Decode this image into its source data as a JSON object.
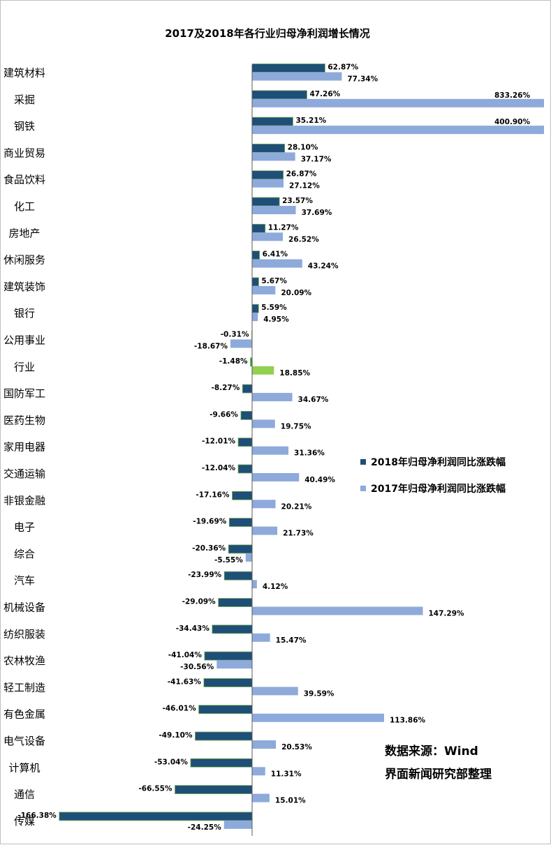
{
  "chart_data": {
    "type": "bar",
    "orientation": "horizontal",
    "title": "2017及2018年各行业归母净利润增长情况",
    "categories": [
      "建筑材料",
      "采掘",
      "钢铁",
      "商业贸易",
      "食品饮料",
      "化工",
      "房地产",
      "休闲服务",
      "建筑装饰",
      "银行",
      "公用事业",
      "行业",
      "国防军工",
      "医药生物",
      "家用电器",
      "交通运输",
      "非银金融",
      "电子",
      "综合",
      "汽车",
      "机械设备",
      "纺织服装",
      "农林牧渔",
      "轻工制造",
      "有色金属",
      "电气设备",
      "计算机",
      "通信",
      "传媒"
    ],
    "series": [
      {
        "name": "2018年归母净利润同比涨跌幅",
        "color": "#1f4e79",
        "values": [
          62.87,
          47.26,
          35.21,
          28.1,
          26.87,
          23.57,
          11.27,
          6.41,
          5.67,
          5.59,
          -0.31,
          -1.48,
          -8.27,
          -9.66,
          -12.01,
          -12.04,
          -17.16,
          -19.69,
          -20.36,
          -23.99,
          -29.09,
          -34.43,
          -41.04,
          -41.63,
          -46.01,
          -49.1,
          -53.04,
          -66.55,
          -166.38
        ],
        "labels": [
          "62.87%",
          "47.26%",
          "35.21%",
          "28.10%",
          "26.87%",
          "23.57%",
          "11.27%",
          "6.41%",
          "5.67%",
          "5.59%",
          "-0.31%",
          "-1.48%",
          "-8.27%",
          "-9.66%",
          "-12.01%",
          "-12.04%",
          "-17.16%",
          "-19.69%",
          "-20.36%",
          "-23.99%",
          "-29.09%",
          "-34.43%",
          "-41.04%",
          "-41.63%",
          "-46.01%",
          "-49.10%",
          "-53.04%",
          "-66.55%",
          "-166.38%"
        ]
      },
      {
        "name": "2017年归母净利润同比涨跌幅",
        "color": "#8eaadb",
        "values": [
          77.34,
          833.26,
          400.9,
          37.17,
          27.12,
          37.69,
          26.52,
          43.24,
          20.09,
          4.95,
          -18.67,
          18.85,
          34.67,
          19.75,
          31.36,
          40.49,
          20.21,
          21.73,
          -5.55,
          4.12,
          147.29,
          15.47,
          -30.56,
          39.59,
          113.86,
          20.53,
          11.31,
          15.01,
          -24.25
        ],
        "labels": [
          "77.34%",
          "833.26%",
          "400.90%",
          "37.17%",
          "27.12%",
          "37.69%",
          "26.52%",
          "43.24%",
          "20.09%",
          "4.95%",
          "-18.67%",
          "18.85%",
          "34.67%",
          "19.75%",
          "31.36%",
          "40.49%",
          "20.21%",
          "21.73%",
          "-5.55%",
          "4.12%",
          "147.29%",
          "15.47%",
          "-30.56%",
          "39.59%",
          "113.86%",
          "20.53%",
          "11.31%",
          "15.01%",
          "-24.25%"
        ]
      }
    ],
    "highlight": {
      "category": "行业",
      "colors": [
        "#22a33a",
        "#92d050"
      ]
    },
    "legend_position": "right",
    "grid": false
  },
  "source": {
    "line1": "数据来源：Wind",
    "line2": "界面新闻研究部整理"
  }
}
